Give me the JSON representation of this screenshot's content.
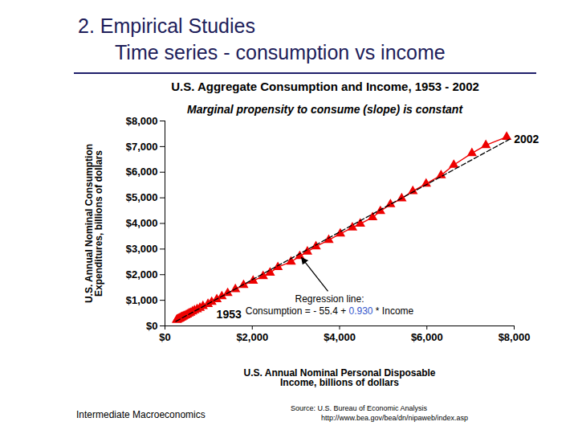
{
  "header": {
    "title": "2. Empirical Studies",
    "subtitle": "Time series - consumption vs income"
  },
  "chart_data": {
    "type": "line",
    "title": "U.S. Aggregate Consumption and Income, 1953 - 2002",
    "subtitle": "Marginal propensity to consume (slope) is constant",
    "xlabel": "U.S. Annual Nominal Personal Disposable Income, billions of dollars",
    "ylabel": "U.S. Annual Nominal Consumption Expenditures, billions of dollars",
    "x": [
      270,
      276,
      294,
      314,
      331,
      343,
      362,
      376,
      392,
      415,
      436,
      474,
      509,
      547,
      583,
      630,
      675,
      736,
      801,
      870,
      985,
      1070,
      1187,
      1302,
      1436,
      1613,
      1800,
      2019,
      2248,
      2407,
      2586,
      2888,
      3087,
      3262,
      3459,
      3752,
      4016,
      4293,
      4474,
      4755,
      4935,
      5165,
      5423,
      5678,
      5983,
      6325,
      6616,
      7032,
      7351,
      7828
    ],
    "series": [
      {
        "color": "#ee0000",
        "marker": "triangle",
        "values": [
          233,
          240,
          259,
          271,
          286,
          294,
          318,
          332,
          342,
          363,
          383,
          412,
          444,
          481,
          510,
          558,
          604,
          648,
          702,
          770,
          852,
          933,
          1034,
          1152,
          1279,
          1429,
          1593,
          1760,
          1942,
          2076,
          2291,
          2503,
          2720,
          2899,
          3100,
          3353,
          3598,
          3840,
          3986,
          4235,
          4478,
          4743,
          4975,
          5256,
          5548,
          5879,
          6282,
          6739,
          7055,
          7376
        ]
      },
      {
        "type": "line",
        "line_style": "dashed",
        "color": "#000000",
        "x": [
          250,
          7900
        ],
        "values": [
          177,
          7292
        ],
        "annotation": {
          "title": "Regression line:",
          "equation": [
            {
              "text": "Consumption = - 55.4 + "
            },
            {
              "text": "0.930",
              "color": "#3355cc"
            },
            {
              "text": " * Income"
            }
          ]
        }
      }
    ],
    "point_labels": [
      {
        "index": 0,
        "text": "1953"
      },
      {
        "index": 49,
        "text": "2002"
      }
    ],
    "xlim": [
      0,
      8000
    ],
    "xticks": [
      {
        "value": 0,
        "label": "$0"
      },
      {
        "value": 2000,
        "label": "$2,000"
      },
      {
        "value": 4000,
        "label": "$4,000"
      },
      {
        "value": 6000,
        "label": "$6,000"
      },
      {
        "value": 8000,
        "label": "$8,000"
      }
    ],
    "ylim": [
      0,
      8000
    ],
    "yticks": [
      {
        "value": 0,
        "label": "$0"
      },
      {
        "value": 1000,
        "label": "$1,000"
      },
      {
        "value": 2000,
        "label": "$2,000"
      },
      {
        "value": 3000,
        "label": "$3,000"
      },
      {
        "value": 4000,
        "label": "$4,000"
      },
      {
        "value": 5000,
        "label": "$5,000"
      },
      {
        "value": 6000,
        "label": "$6,000"
      },
      {
        "value": 7000,
        "label": "$7,000"
      },
      {
        "value": 8000,
        "label": "$8,000"
      }
    ]
  },
  "footer": {
    "course": "Intermediate Macroeconomics",
    "source": "Source: U.S. Bureau of Economic Analysis",
    "url": "http://www.bea.gov/bea/dn/nipaweb/index.asp"
  }
}
